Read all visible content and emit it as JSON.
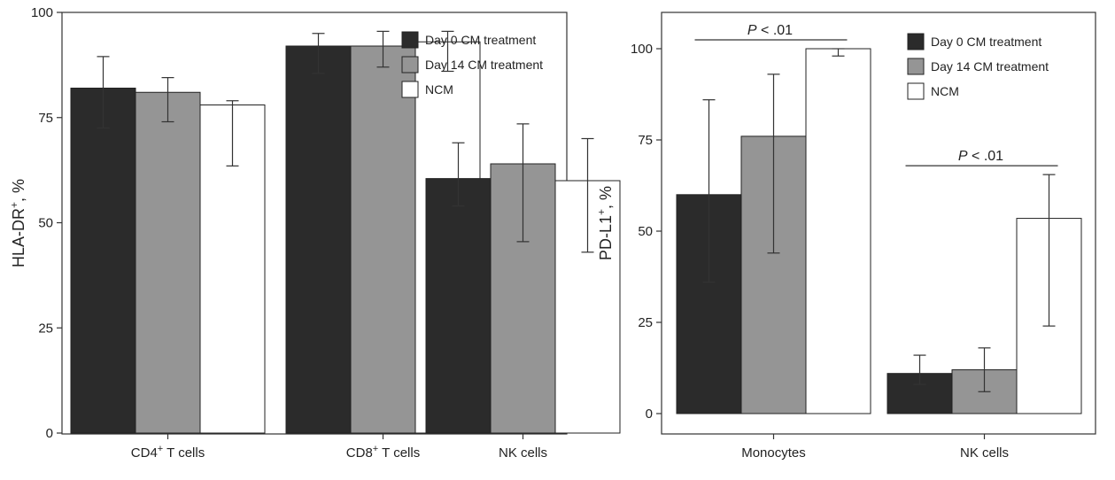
{
  "chart_data": [
    {
      "type": "bar",
      "ylabel_main": "HLA-DR",
      "ylabel_sup": "+",
      "ylabel_suffix": ", %",
      "ylim": [
        0,
        100
      ],
      "yticks": [
        "0",
        "25",
        "50",
        "75",
        "100"
      ],
      "categories": [
        {
          "main": "CD4",
          "sup": "+",
          "suffix": " T cells"
        },
        {
          "main": "CD8",
          "sup": "+",
          "suffix": " T cells"
        },
        {
          "main": "NK cells",
          "sup": "",
          "suffix": ""
        }
      ],
      "legend_position": "top-right",
      "series": [
        {
          "name": "Day 0 CM treatment",
          "color": "#2b2b2b",
          "values": [
            82,
            92,
            60.5
          ],
          "err_low": [
            72.5,
            85.5,
            54
          ],
          "err_high": [
            89.5,
            95,
            69
          ]
        },
        {
          "name": "Day 14 CM treatment",
          "color": "#959595",
          "values": [
            81,
            92,
            64
          ],
          "err_low": [
            74,
            87,
            45.5
          ],
          "err_high": [
            84.5,
            95.5,
            73.5
          ]
        },
        {
          "name": "NCM",
          "color": "#ffffff",
          "values": [
            78,
            93,
            60
          ],
          "err_low": [
            63.5,
            86,
            43
          ],
          "err_high": [
            79,
            95.5,
            70
          ]
        }
      ],
      "annotations": []
    },
    {
      "type": "bar",
      "ylabel_main": "PD-L1",
      "ylabel_sup": "+",
      "ylabel_suffix": ", %",
      "ylim": [
        0,
        100
      ],
      "yticks": [
        "0",
        "25",
        "50",
        "75",
        "100"
      ],
      "categories": [
        {
          "main": "Monocytes",
          "sup": "",
          "suffix": ""
        },
        {
          "main": "NK cells",
          "sup": "",
          "suffix": ""
        }
      ],
      "legend_position": "top-right",
      "series": [
        {
          "name": "Day 0 CM treatment",
          "color": "#2b2b2b",
          "values": [
            60,
            11
          ],
          "err_low": [
            36,
            8
          ],
          "err_high": [
            86,
            16
          ]
        },
        {
          "name": "Day 14 CM treatment",
          "color": "#959595",
          "values": [
            76,
            12
          ],
          "err_low": [
            44,
            6
          ],
          "err_high": [
            93,
            18
          ]
        },
        {
          "name": "NCM",
          "color": "#ffffff",
          "values": [
            100,
            53.5
          ],
          "err_low": [
            98,
            24
          ],
          "err_high": [
            100,
            65.5
          ]
        }
      ],
      "annotations": [
        {
          "p_italic": "P",
          "text": " < .01",
          "category": 0
        },
        {
          "p_italic": "P",
          "text": " < .01",
          "category": 1
        }
      ]
    }
  ]
}
